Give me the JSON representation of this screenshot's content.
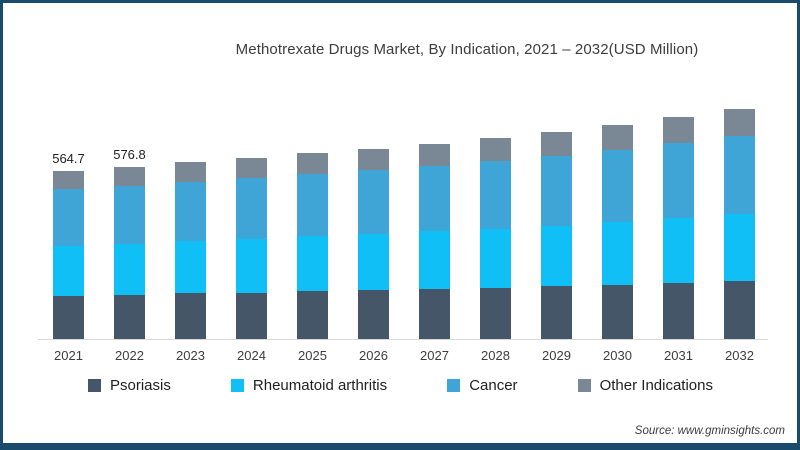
{
  "source": {
    "text": "Source: www.gminsights.com"
  },
  "frame": {
    "border_color": "#1a4a6c",
    "background": "#ffffff",
    "axis_line_color": "#d9d9d9"
  },
  "chart_data": {
    "type": "bar",
    "stacked": true,
    "title": "Methotrexate Drugs Market, By Indication, 2021 – 2032(USD Million)",
    "unit": "USD Million",
    "categories": [
      "2021",
      "2022",
      "2023",
      "2024",
      "2025",
      "2026",
      "2027",
      "2028",
      "2029",
      "2030",
      "2031",
      "2032"
    ],
    "series": [
      {
        "name": "Psoriasis",
        "color": "#445668",
        "values": [
          146,
          149,
          153,
          156,
          160,
          164,
          168,
          172,
          177,
          182,
          189,
          196
        ]
      },
      {
        "name": "Rheumatoid arthritis",
        "color": "#10bff5",
        "values": [
          168,
          171,
          176,
          180,
          185,
          189,
          194,
          198,
          204,
          210,
          217,
          224
        ]
      },
      {
        "name": "Cancer",
        "color": "#3fa5d6",
        "values": [
          190,
          194,
          200,
          204,
          210,
          215,
          220,
          227,
          235,
          243,
          253,
          263
        ]
      },
      {
        "name": "Other Indications",
        "color": "#7a8795",
        "values": [
          61,
          63,
          65,
          67,
          69,
          72,
          74,
          77,
          80,
          83,
          87,
          91
        ]
      }
    ],
    "totals_usd_million": [
      564.7,
      576.8,
      594,
      607,
      624,
      640,
      656,
      674,
      696,
      718,
      746,
      774
    ],
    "bar_value_labels": [
      "564.7",
      "576.8",
      "",
      "",
      "",
      "",
      "",
      "",
      "",
      "",
      "",
      ""
    ],
    "ylim": [
      0,
      793
    ],
    "grid": false,
    "legend_position": "bottom",
    "value_axis_visible": false
  }
}
